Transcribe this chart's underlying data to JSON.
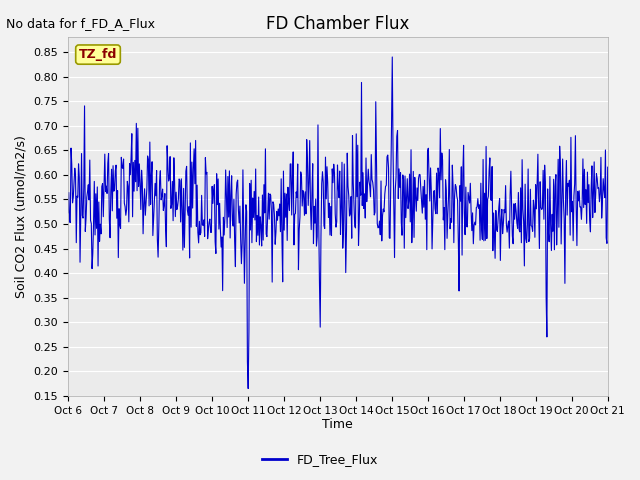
{
  "title": "FD Chamber Flux",
  "top_left_text": "No data for f_FD_A_Flux",
  "annotation_text": "TZ_fd",
  "xlabel": "Time",
  "ylabel": "Soil CO2 Flux (umol/m2/s)",
  "ylim": [
    0.15,
    0.88
  ],
  "yticks": [
    0.15,
    0.2,
    0.25,
    0.3,
    0.35,
    0.4,
    0.45,
    0.5,
    0.55,
    0.6,
    0.65,
    0.7,
    0.75,
    0.8,
    0.85
  ],
  "xtick_labels": [
    "Oct 6",
    "Oct 7",
    "Oct 8",
    "Oct 9",
    "Oct 10",
    "Oct 11",
    "Oct 12",
    "Oct 13",
    "Oct 14",
    "Oct 15",
    "Oct 16",
    "Oct 17",
    "Oct 18",
    "Oct 19",
    "Oct 20",
    "Oct 21"
  ],
  "line_color": "#0000CC",
  "line_width": 0.8,
  "legend_label": "FD_Tree_Flux",
  "fig_bg_color": "#F2F2F2",
  "plot_bg_color": "#EBEBEB",
  "grid_color": "#FFFFFF",
  "seed": 12345,
  "n_points": 720,
  "base_mean": 0.545
}
